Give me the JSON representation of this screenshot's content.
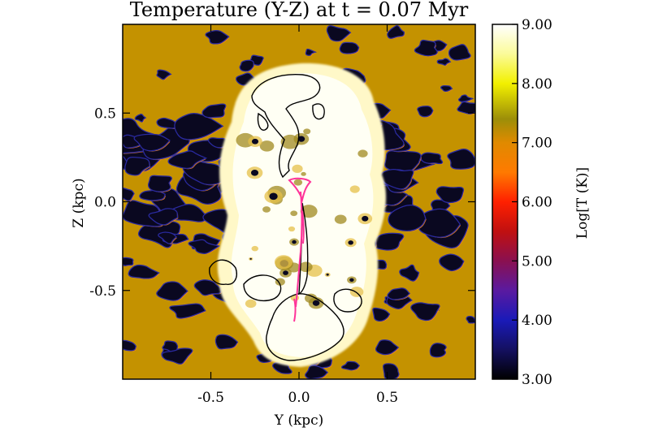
{
  "chart_data": {
    "type": "heatmap",
    "title": "Temperature (Y-Z) at t = 0.07 Myr",
    "xlabel": "Y (kpc)",
    "ylabel": "Z (kpc)",
    "xlim": [
      -1.0,
      1.0
    ],
    "ylim": [
      -1.0,
      1.0
    ],
    "x_ticks": [
      -0.5,
      0.0,
      0.5
    ],
    "x_tick_labels": [
      "-0.5",
      "0.0",
      "0.5"
    ],
    "y_ticks": [
      0.5,
      0.0,
      -0.5
    ],
    "y_tick_labels": [
      "0.5",
      "0.0",
      "-0.5"
    ],
    "colorbar": {
      "label": "Log[T (K)]",
      "range": [
        3.0,
        9.0
      ],
      "ticks": [
        9.0,
        8.0,
        7.0,
        6.0,
        5.0,
        4.0,
        3.0
      ],
      "tick_labels": [
        "9.00",
        "8.00",
        "7.00",
        "6.00",
        "5.00",
        "4.00",
        "3.00"
      ],
      "colors": [
        {
          "value": 3.0,
          "color": "#000000"
        },
        {
          "value": 3.5,
          "color": "#141060"
        },
        {
          "value": 4.0,
          "color": "#1a1ab8"
        },
        {
          "value": 4.5,
          "color": "#5a1aa0"
        },
        {
          "value": 5.0,
          "color": "#8a1050"
        },
        {
          "value": 5.5,
          "color": "#c01010"
        },
        {
          "value": 6.0,
          "color": "#ff2000"
        },
        {
          "value": 6.5,
          "color": "#ff7a00"
        },
        {
          "value": 7.0,
          "color": "#e08a00"
        },
        {
          "value": 7.4,
          "color": "#9c8e08"
        },
        {
          "value": 8.0,
          "color": "#f2f000"
        },
        {
          "value": 8.5,
          "color": "#fbfb99"
        },
        {
          "value": 9.0,
          "color": "#ffffff"
        }
      ]
    },
    "background_log_temperature": 7.0,
    "bubble_log_temperature": 9.0,
    "cold_cloud_log_temperature": 3.0,
    "series": [
      {
        "name": "",
        "region": "hot outflow bubble",
        "log_temperature": 9.0
      },
      {
        "name": "",
        "region": "ambient medium",
        "log_temperature": 7.0
      },
      {
        "name": "",
        "region": "cold clouds",
        "log_temperature": 3.0
      }
    ],
    "colors": {
      "ambient": "#c49200",
      "cold": "#0a0820",
      "cloud_rim": "#2a2aa0",
      "warm_rim": "#ff8c1a",
      "bubble": "#fffff0",
      "contour": "#000000",
      "jet": "#ff3399"
    }
  }
}
